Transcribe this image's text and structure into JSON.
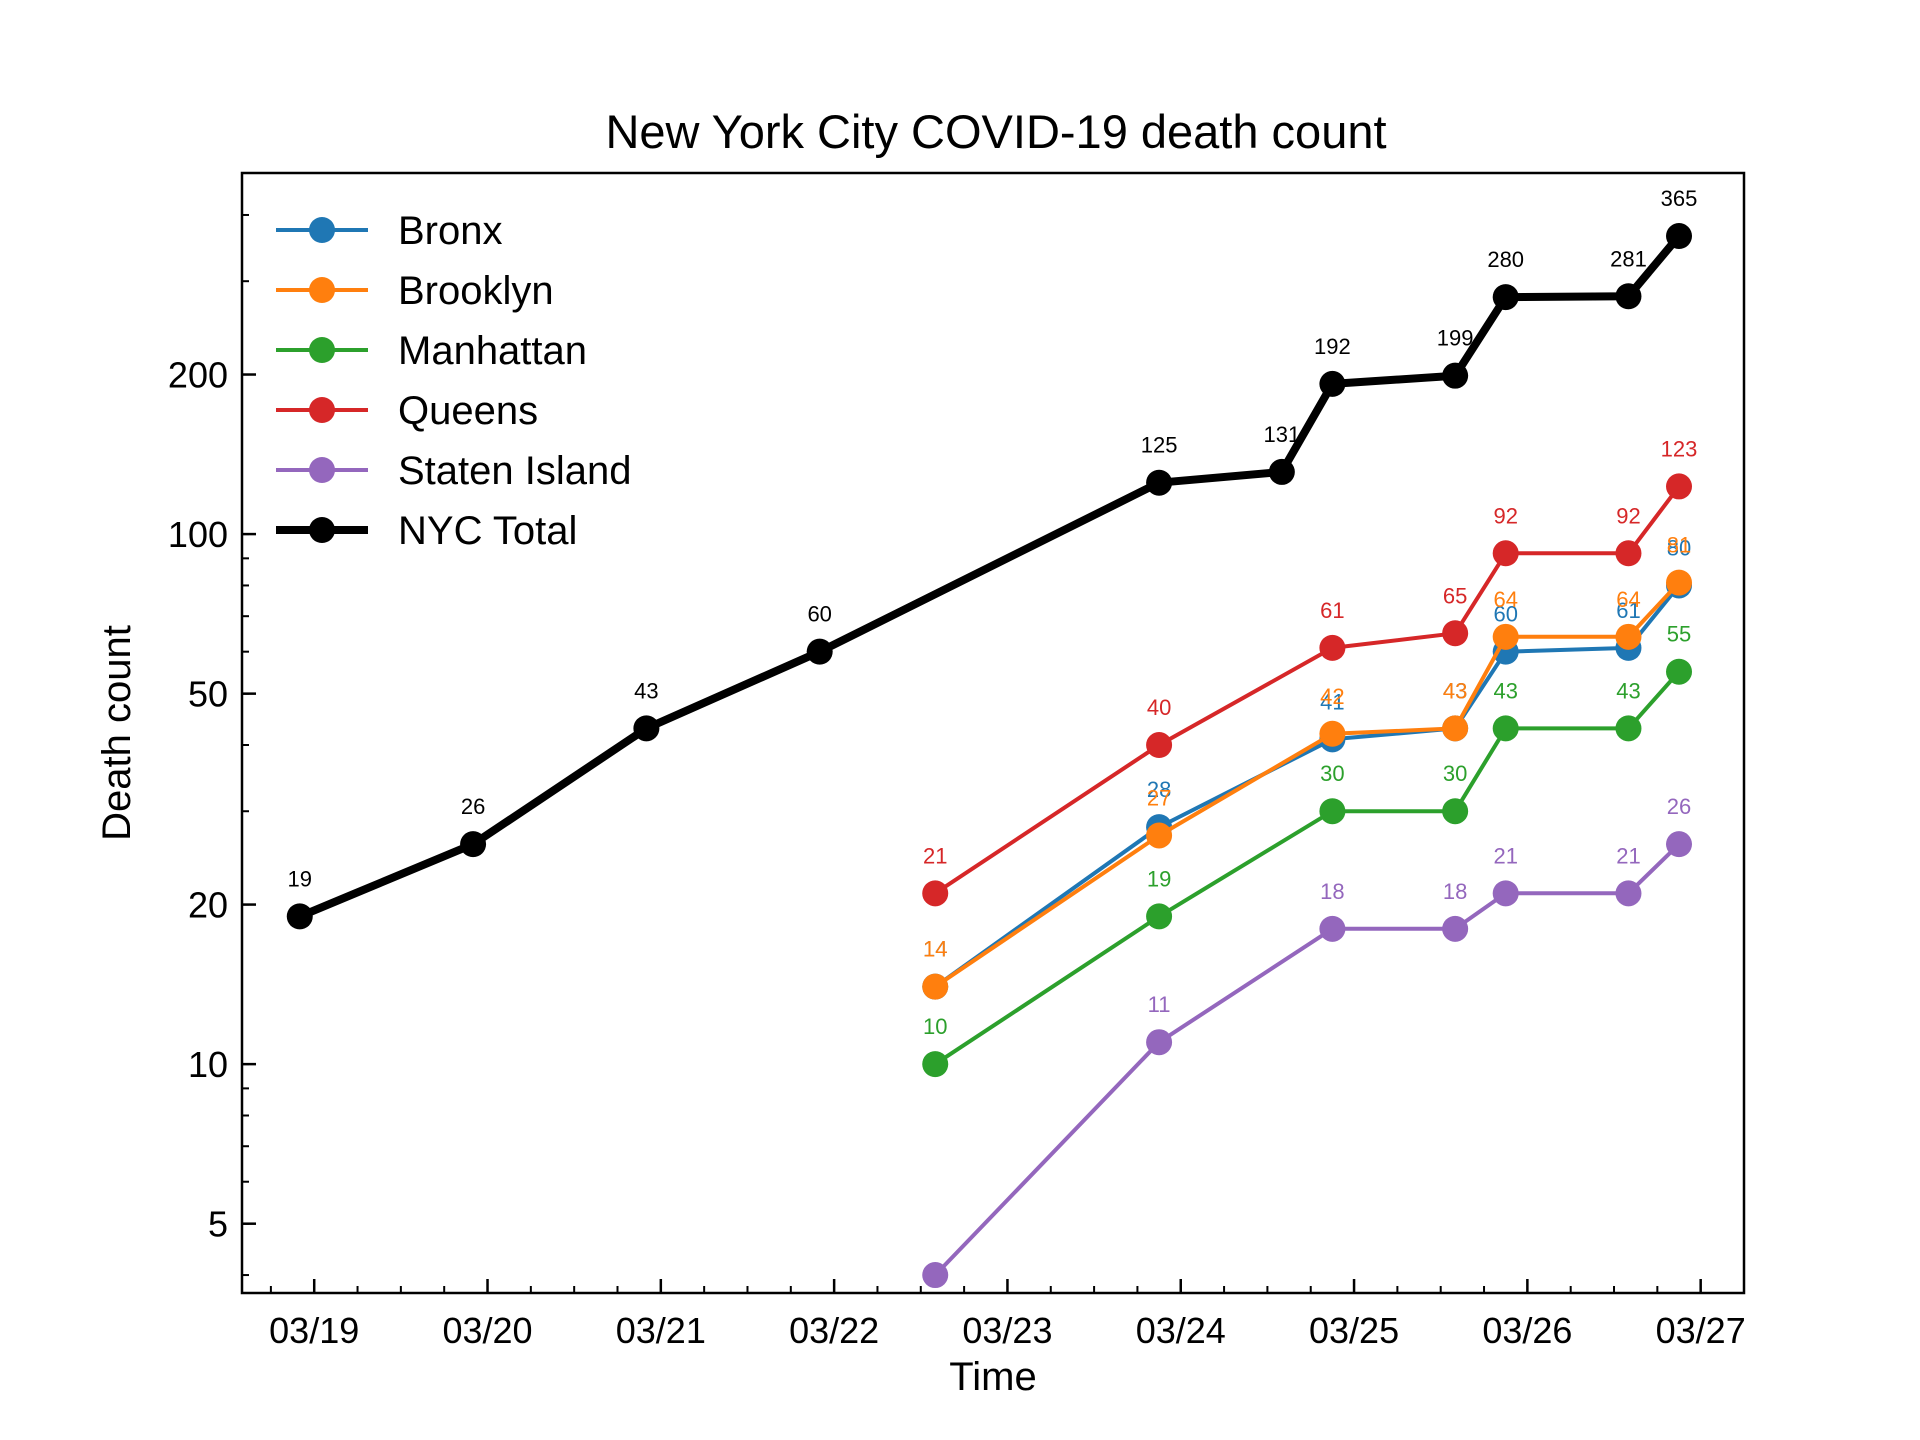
{
  "chart_data": {
    "type": "line",
    "title": "New York City COVID-19 death count",
    "xlabel": "Time",
    "ylabel": "Death count",
    "yscale": "log",
    "ylim": [
      3.7,
      480
    ],
    "xlim": [
      "2020-03-18 14:00",
      "2020-03-27 06:00"
    ],
    "x_tick_labels": [
      "03/19",
      "03/20",
      "03/21",
      "03/22",
      "03/23",
      "03/24",
      "03/25",
      "03/26",
      "03/27"
    ],
    "y_tick_labels": [
      "5",
      "10",
      "20",
      "50",
      "100",
      "200"
    ],
    "y_ticks": [
      5,
      10,
      20,
      50,
      100,
      200
    ],
    "grid": false,
    "legend_position": "top-left",
    "series": [
      {
        "name": "Bronx",
        "color": "#1f77b4",
        "x": [
          "2020-03-22 14:00",
          "2020-03-23 21:00",
          "2020-03-24 21:00",
          "2020-03-25 14:00",
          "2020-03-25 21:00",
          "2020-03-26 14:00",
          "2020-03-26 21:00"
        ],
        "y": [
          14,
          28,
          41,
          43,
          60,
          61,
          80
        ]
      },
      {
        "name": "Brooklyn",
        "color": "#ff7f0e",
        "x": [
          "2020-03-22 14:00",
          "2020-03-23 21:00",
          "2020-03-24 21:00",
          "2020-03-25 14:00",
          "2020-03-25 21:00",
          "2020-03-26 14:00",
          "2020-03-26 21:00"
        ],
        "y": [
          14,
          27,
          42,
          43,
          64,
          64,
          81
        ]
      },
      {
        "name": "Manhattan",
        "color": "#2ca02c",
        "x": [
          "2020-03-22 14:00",
          "2020-03-23 21:00",
          "2020-03-24 21:00",
          "2020-03-25 14:00",
          "2020-03-25 21:00",
          "2020-03-26 14:00",
          "2020-03-26 21:00"
        ],
        "y": [
          10,
          19,
          30,
          30,
          43,
          43,
          55
        ]
      },
      {
        "name": "Queens",
        "color": "#d62728",
        "x": [
          "2020-03-22 14:00",
          "2020-03-23 21:00",
          "2020-03-24 21:00",
          "2020-03-25 14:00",
          "2020-03-25 21:00",
          "2020-03-26 14:00",
          "2020-03-26 21:00"
        ],
        "y": [
          21,
          40,
          61,
          65,
          92,
          92,
          123
        ]
      },
      {
        "name": "Staten Island",
        "color": "#9467bd",
        "x": [
          "2020-03-22 14:00",
          "2020-03-23 21:00",
          "2020-03-24 21:00",
          "2020-03-25 14:00",
          "2020-03-25 21:00",
          "2020-03-26 14:00",
          "2020-03-26 21:00"
        ],
        "y": [
          4,
          11,
          18,
          18,
          21,
          21,
          26
        ],
        "labels": [
          "",
          "11",
          "18",
          "18",
          "21",
          "21",
          "26"
        ]
      },
      {
        "name": "NYC Total",
        "color": "#000000",
        "bold": true,
        "x": [
          "2020-03-18 22:00",
          "2020-03-19 22:00",
          "2020-03-20 22:00",
          "2020-03-21 22:00",
          "2020-03-23 21:00",
          "2020-03-24 14:00",
          "2020-03-24 21:00",
          "2020-03-25 14:00",
          "2020-03-25 21:00",
          "2020-03-26 14:00",
          "2020-03-26 21:00"
        ],
        "y": [
          19,
          26,
          43,
          60,
          125,
          131,
          192,
          199,
          280,
          281,
          365
        ]
      }
    ]
  }
}
